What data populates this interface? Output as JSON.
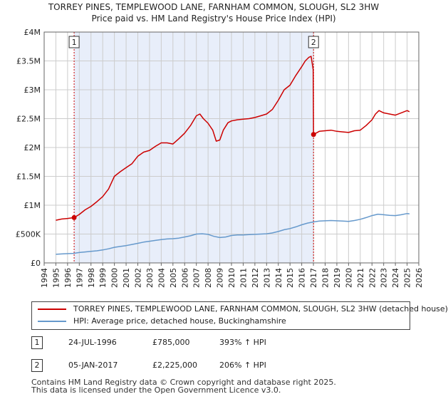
{
  "chart_data": {
    "type": "line",
    "title": "TORREY PINES, TEMPLEWOOD LANE, FARNHAM COMMON, SLOUGH, SL2 3HW",
    "subtitle": "Price paid vs. HM Land Registry's House Price Index (HPI)",
    "xlim": [
      1994,
      2026
    ],
    "ylim": [
      0,
      4000000
    ],
    "x_ticks": [
      1994,
      1995,
      1996,
      1997,
      1998,
      1999,
      2000,
      2001,
      2002,
      2003,
      2004,
      2005,
      2006,
      2007,
      2008,
      2009,
      2010,
      2011,
      2012,
      2013,
      2014,
      2015,
      2016,
      2017,
      2018,
      2019,
      2020,
      2021,
      2022,
      2023,
      2024,
      2025,
      2026
    ],
    "y_ticks": [
      {
        "value": 0,
        "label": "£0"
      },
      {
        "value": 500000,
        "label": "£500K"
      },
      {
        "value": 1000000,
        "label": "£1M"
      },
      {
        "value": 1500000,
        "label": "£1.5M"
      },
      {
        "value": 2000000,
        "label": "£2M"
      },
      {
        "value": 2500000,
        "label": "£2.5M"
      },
      {
        "value": 3000000,
        "label": "£3M"
      },
      {
        "value": 3500000,
        "label": "£3.5M"
      },
      {
        "value": 4000000,
        "label": "£4M"
      }
    ],
    "highlight_range": [
      1996.56,
      2017.01
    ],
    "series": [
      {
        "name": "TORREY PINES, TEMPLEWOOD LANE, FARNHAM COMMON, SLOUGH, SL2 3HW (detached house)",
        "color": "#cc0000",
        "x": [
          1995.0,
          1995.5,
          1996.0,
          1996.56,
          1997.0,
          1997.5,
          1998.0,
          1998.5,
          1999.0,
          1999.5,
          2000.0,
          2000.5,
          2001.0,
          2001.5,
          2002.0,
          2002.5,
          2003.0,
          2003.5,
          2004.0,
          2004.5,
          2005.0,
          2005.5,
          2006.0,
          2006.5,
          2007.0,
          2007.3,
          2007.6,
          2008.0,
          2008.4,
          2008.7,
          2009.0,
          2009.3,
          2009.7,
          2010.0,
          2010.5,
          2011.0,
          2011.5,
          2012.0,
          2012.5,
          2013.0,
          2013.5,
          2014.0,
          2014.5,
          2015.0,
          2015.5,
          2016.0,
          2016.3,
          2016.6,
          2016.8,
          2016.98,
          2017.01,
          2017.5,
          2018.0,
          2018.5,
          2019.0,
          2019.5,
          2020.0,
          2020.5,
          2021.0,
          2021.5,
          2022.0,
          2022.3,
          2022.6,
          2023.0,
          2023.5,
          2024.0,
          2024.5,
          2025.0,
          2025.2
        ],
        "values": [
          740000,
          760000,
          770000,
          785000,
          840000,
          920000,
          980000,
          1060000,
          1150000,
          1280000,
          1500000,
          1580000,
          1650000,
          1720000,
          1850000,
          1920000,
          1950000,
          2020000,
          2080000,
          2080000,
          2060000,
          2150000,
          2250000,
          2380000,
          2550000,
          2580000,
          2500000,
          2420000,
          2300000,
          2110000,
          2130000,
          2300000,
          2430000,
          2460000,
          2480000,
          2490000,
          2500000,
          2520000,
          2550000,
          2580000,
          2660000,
          2820000,
          3000000,
          3080000,
          3250000,
          3400000,
          3500000,
          3560000,
          3580000,
          3350000,
          2225000,
          2280000,
          2290000,
          2300000,
          2280000,
          2270000,
          2260000,
          2290000,
          2300000,
          2380000,
          2480000,
          2580000,
          2640000,
          2600000,
          2580000,
          2560000,
          2600000,
          2640000,
          2620000
        ]
      },
      {
        "name": "HPI: Average price, detached house, Buckinghamshire",
        "color": "#6699cc",
        "x": [
          1995.0,
          1995.5,
          1996.0,
          1996.5,
          1997.0,
          1997.5,
          1998.0,
          1998.5,
          1999.0,
          1999.5,
          2000.0,
          2000.5,
          2001.0,
          2001.5,
          2002.0,
          2002.5,
          2003.0,
          2003.5,
          2004.0,
          2004.5,
          2005.0,
          2005.5,
          2006.0,
          2006.5,
          2007.0,
          2007.5,
          2008.0,
          2008.5,
          2009.0,
          2009.5,
          2010.0,
          2010.5,
          2011.0,
          2011.5,
          2012.0,
          2012.5,
          2013.0,
          2013.5,
          2014.0,
          2014.5,
          2015.0,
          2015.5,
          2016.0,
          2016.5,
          2017.0,
          2017.5,
          2018.0,
          2018.5,
          2019.0,
          2019.5,
          2020.0,
          2020.5,
          2021.0,
          2021.5,
          2022.0,
          2022.5,
          2023.0,
          2023.5,
          2024.0,
          2024.5,
          2025.0,
          2025.2
        ],
        "values": [
          150000,
          155000,
          160000,
          165000,
          180000,
          190000,
          200000,
          210000,
          225000,
          245000,
          270000,
          285000,
          300000,
          320000,
          340000,
          360000,
          375000,
          390000,
          405000,
          415000,
          420000,
          430000,
          450000,
          470000,
          500000,
          505000,
          495000,
          460000,
          440000,
          450000,
          475000,
          485000,
          485000,
          490000,
          495000,
          500000,
          505000,
          520000,
          545000,
          575000,
          595000,
          625000,
          660000,
          690000,
          710000,
          725000,
          730000,
          735000,
          730000,
          725000,
          720000,
          735000,
          755000,
          785000,
          820000,
          845000,
          835000,
          825000,
          820000,
          835000,
          855000,
          850000
        ]
      }
    ],
    "sales": [
      {
        "id": "1",
        "date": "24-JUL-1996",
        "x": 1996.56,
        "price": 785000,
        "price_label": "£785,000",
        "hpi_label": "393% ↑ HPI"
      },
      {
        "id": "2",
        "date": "05-JAN-2017",
        "x": 2017.01,
        "price": 2225000,
        "price_label": "£2,225,000",
        "hpi_label": "206% ↑ HPI"
      }
    ]
  },
  "legend": {
    "property_label": "TORREY PINES, TEMPLEWOOD LANE, FARNHAM COMMON, SLOUGH, SL2 3HW (detached house)",
    "hpi_label": "HPI: Average price, detached house, Buckinghamshire",
    "property_color": "#cc0000",
    "hpi_color": "#6699cc"
  },
  "footer": {
    "line1": "Contains HM Land Registry data © Crown copyright and database right 2025.",
    "line2": "This data is licensed under the Open Government Licence v3.0."
  }
}
